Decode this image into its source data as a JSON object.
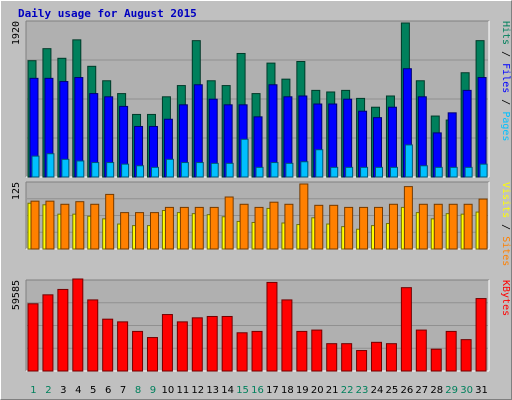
{
  "title": "Daily usage for August 2015",
  "colors": {
    "background": "#C0C0C0",
    "plot_bg": "#B0B0B0",
    "hits": "#00805C",
    "files": "#0000FF",
    "pages": "#00C0FF",
    "visits": "#FFFF00",
    "sites": "#FF8000",
    "kbytes": "#FF0000",
    "weekday_label": "#000000",
    "weekend_label": "#00805C"
  },
  "chart_data": [
    {
      "type": "bar",
      "categories": [
        "1",
        "2",
        "3",
        "4",
        "5",
        "6",
        "7",
        "8",
        "9",
        "10",
        "11",
        "12",
        "13",
        "14",
        "15",
        "16",
        "17",
        "18",
        "19",
        "20",
        "21",
        "22",
        "23",
        "24",
        "25",
        "26",
        "27",
        "28",
        "29",
        "30",
        "31"
      ],
      "weekend_days": [
        "1",
        "2",
        "8",
        "9",
        "15",
        "16",
        "22",
        "23",
        "29",
        "30"
      ],
      "y_tick_label": "1920",
      "ylim": [
        0,
        1920
      ],
      "right_label": [
        "Pages",
        "Files",
        "Hits"
      ],
      "series": [
        {
          "name": "Hits",
          "values": [
            1450,
            1600,
            1480,
            1710,
            1380,
            1200,
            1040,
            780,
            780,
            1000,
            1140,
            1700,
            1200,
            1140,
            1540,
            1040,
            1420,
            1220,
            1440,
            1080,
            1060,
            1080,
            980,
            870,
            1010,
            1920,
            1200,
            760,
            710,
            1300,
            1700
          ]
        },
        {
          "name": "Files",
          "values": [
            1230,
            1230,
            1190,
            1240,
            1040,
            1000,
            880,
            630,
            630,
            720,
            900,
            1150,
            970,
            900,
            900,
            750,
            1150,
            1000,
            1010,
            910,
            910,
            970,
            820,
            740,
            870,
            1350,
            1000,
            550,
            800,
            1080,
            1240
          ]
        },
        {
          "name": "Pages",
          "values": [
            260,
            290,
            220,
            200,
            180,
            180,
            160,
            140,
            120,
            220,
            180,
            180,
            170,
            170,
            470,
            120,
            180,
            170,
            190,
            340,
            120,
            120,
            120,
            120,
            120,
            400,
            140,
            120,
            120,
            120,
            160
          ]
        }
      ]
    },
    {
      "type": "bar",
      "categories": [
        "1",
        "2",
        "3",
        "4",
        "5",
        "6",
        "7",
        "8",
        "9",
        "10",
        "11",
        "12",
        "13",
        "14",
        "15",
        "16",
        "17",
        "18",
        "19",
        "20",
        "21",
        "22",
        "23",
        "24",
        "25",
        "26",
        "27",
        "28",
        "29",
        "30",
        "31"
      ],
      "y_tick_label": "125",
      "ylim": [
        0,
        125
      ],
      "right_label": [
        "Sites",
        "Visits"
      ],
      "series": [
        {
          "name": "Visits",
          "values": [
            88,
            85,
            67,
            67,
            63,
            58,
            48,
            45,
            45,
            74,
            70,
            68,
            66,
            62,
            53,
            51,
            78,
            50,
            47,
            60,
            48,
            43,
            38,
            45,
            49,
            80,
            70,
            58,
            68,
            67,
            71
          ]
        },
        {
          "name": "Sites",
          "values": [
            92,
            92,
            86,
            91,
            86,
            105,
            70,
            70,
            70,
            80,
            80,
            80,
            80,
            100,
            86,
            80,
            90,
            86,
            125,
            84,
            84,
            80,
            80,
            80,
            86,
            120,
            86,
            86,
            86,
            86,
            96
          ]
        }
      ]
    },
    {
      "type": "bar",
      "categories": [
        "1",
        "2",
        "3",
        "4",
        "5",
        "6",
        "7",
        "8",
        "9",
        "10",
        "11",
        "12",
        "13",
        "14",
        "15",
        "16",
        "17",
        "18",
        "19",
        "20",
        "21",
        "22",
        "23",
        "24",
        "25",
        "26",
        "27",
        "28",
        "29",
        "30",
        "31"
      ],
      "y_tick_label": "59585",
      "ylim": [
        0,
        59585
      ],
      "right_label": [
        "KBytes"
      ],
      "series": [
        {
          "name": "KBytes",
          "values": [
            45000,
            51000,
            54600,
            61600,
            47600,
            34700,
            32900,
            26500,
            22400,
            37800,
            32900,
            35600,
            36500,
            36500,
            25600,
            26500,
            59300,
            47600,
            26500,
            27400,
            18300,
            18300,
            13700,
            19200,
            18300,
            55800,
            27400,
            14600,
            26500,
            21000,
            48500
          ]
        }
      ]
    }
  ]
}
